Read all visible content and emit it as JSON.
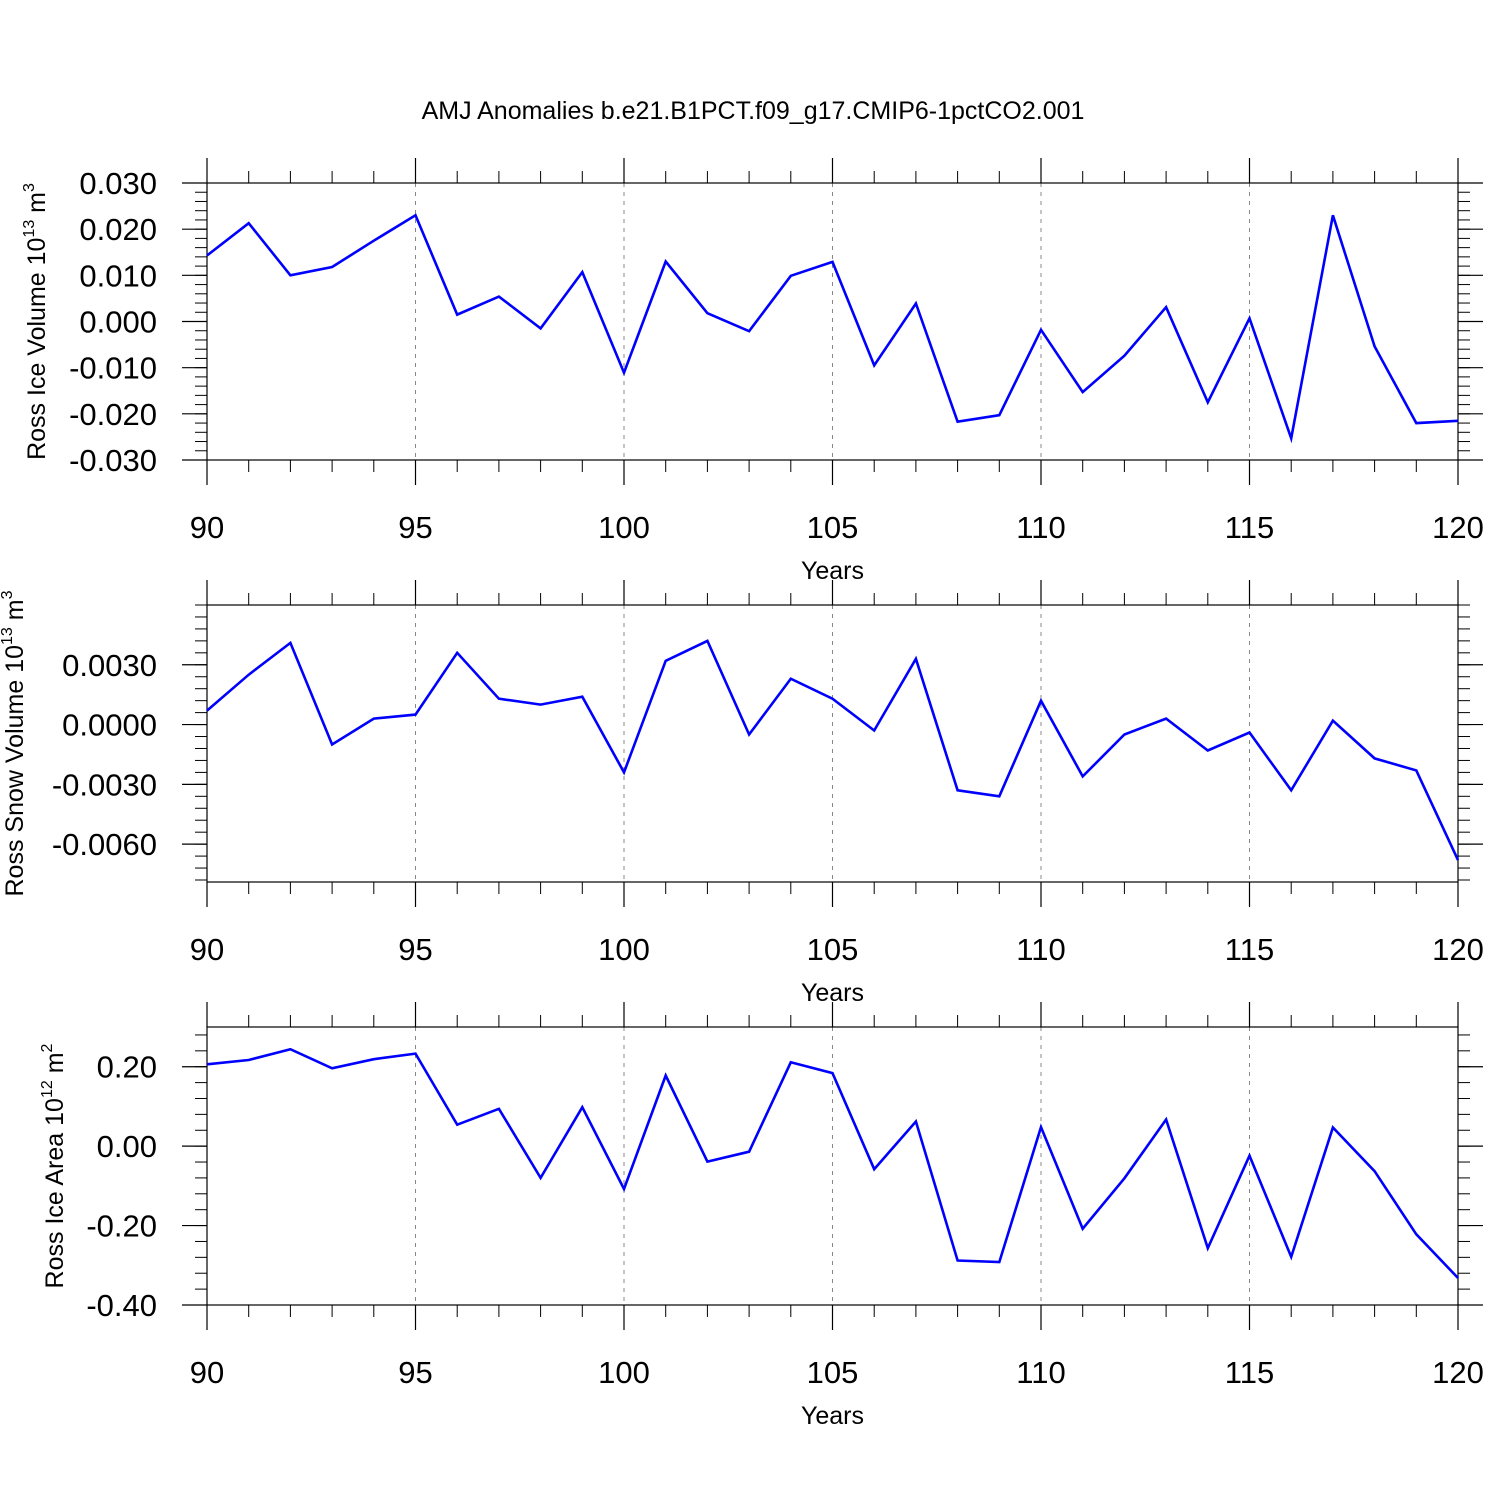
{
  "figure": {
    "title": "AMJ Anomalies b.e21.B1PCT.f09_g17.CMIP6-1pctCO2.001"
  },
  "colors": {
    "line": "#0000ff",
    "axis": "#000000",
    "grid": "#888888"
  },
  "chart_data": [
    {
      "type": "line",
      "xlabel": "Years",
      "ylabel": "Ross Ice Volume 10",
      "ylabel_exp": "13",
      "ylabel_unit": "m",
      "ylabel_unit_exp": "3",
      "xlim": [
        90,
        120
      ],
      "ylim": [
        -0.03,
        0.03
      ],
      "xticks": [
        90,
        95,
        100,
        105,
        110,
        115,
        120
      ],
      "yticks": [
        -0.03,
        -0.02,
        -0.01,
        0.0,
        0.01,
        0.02,
        0.03
      ],
      "ytick_labels": [
        "-0.030",
        "-0.020",
        "-0.010",
        "0.000",
        "0.010",
        "0.020",
        "0.030"
      ],
      "vgrid_dashed": [
        95,
        100,
        105,
        110,
        115
      ],
      "x": [
        90,
        91,
        92,
        93,
        94,
        95,
        96,
        97,
        98,
        99,
        100,
        101,
        102,
        103,
        104,
        105,
        106,
        107,
        108,
        109,
        110,
        111,
        112,
        113,
        114,
        115,
        116,
        117,
        118,
        119,
        120
      ],
      "series": [
        {
          "values": [
            0.0143,
            0.0213,
            0.01,
            0.0118,
            0.0175,
            0.023,
            0.0015,
            0.0054,
            -0.0015,
            0.0107,
            -0.0111,
            0.013,
            0.0018,
            -0.0021,
            0.0099,
            0.0129,
            -0.0095,
            0.0039,
            -0.0217,
            -0.0203,
            -0.0018,
            -0.0153,
            -0.0074,
            0.0031,
            -0.0175,
            0.0007,
            -0.0253,
            0.023,
            -0.0054,
            -0.022,
            -0.0215
          ]
        }
      ]
    },
    {
      "type": "line",
      "xlabel": "Years",
      "ylabel": "Ross Snow Volume 10",
      "ylabel_exp": "13",
      "ylabel_unit": "m",
      "ylabel_unit_exp": "3",
      "xlim": [
        90,
        120
      ],
      "ylim": [
        -0.0079,
        0.006
      ],
      "xticks": [
        90,
        95,
        100,
        105,
        110,
        115,
        120
      ],
      "yticks": [
        -0.006,
        -0.003,
        0.0,
        0.003
      ],
      "ytick_labels": [
        "-0.0060",
        "-0.0030",
        "0.0000",
        "0.0030"
      ],
      "vgrid_dashed": [
        95,
        100,
        105,
        110,
        115
      ],
      "x": [
        90,
        91,
        92,
        93,
        94,
        95,
        96,
        97,
        98,
        99,
        100,
        101,
        102,
        103,
        104,
        105,
        106,
        107,
        108,
        109,
        110,
        111,
        112,
        113,
        114,
        115,
        116,
        117,
        118,
        119,
        120
      ],
      "series": [
        {
          "values": [
            0.0007,
            0.0025,
            0.0041,
            -0.001,
            0.0003,
            0.0005,
            0.0036,
            0.0013,
            0.001,
            0.0014,
            -0.0024,
            0.0032,
            0.0042,
            -0.0005,
            0.0023,
            0.0013,
            -0.0003,
            0.0033,
            -0.0033,
            -0.0036,
            0.0012,
            -0.0026,
            -0.0005,
            0.0003,
            -0.0013,
            -0.0004,
            -0.0033,
            0.0002,
            -0.0017,
            -0.0023,
            -0.0068
          ]
        }
      ]
    },
    {
      "type": "line",
      "xlabel": "Years",
      "ylabel": "Ross Ice Area 10",
      "ylabel_exp": "12",
      "ylabel_unit": "m",
      "ylabel_unit_exp": "2",
      "xlim": [
        90,
        120
      ],
      "ylim": [
        -0.4,
        0.3
      ],
      "xticks": [
        90,
        95,
        100,
        105,
        110,
        115,
        120
      ],
      "yticks": [
        -0.4,
        -0.2,
        0.0,
        0.2
      ],
      "ytick_labels": [
        "-0.40",
        "-0.20",
        "0.00",
        "0.20"
      ],
      "vgrid_dashed": [
        95,
        100,
        105,
        110,
        115
      ],
      "x": [
        90,
        91,
        92,
        93,
        94,
        95,
        96,
        97,
        98,
        99,
        100,
        101,
        102,
        103,
        104,
        105,
        106,
        107,
        108,
        109,
        110,
        111,
        112,
        113,
        114,
        115,
        116,
        117,
        118,
        119,
        120
      ],
      "series": [
        {
          "values": [
            0.206,
            0.217,
            0.244,
            0.196,
            0.219,
            0.233,
            0.054,
            0.094,
            -0.08,
            0.098,
            -0.108,
            0.178,
            -0.039,
            -0.014,
            0.211,
            0.184,
            -0.058,
            0.062,
            -0.288,
            -0.292,
            0.048,
            -0.208,
            -0.081,
            0.067,
            -0.257,
            -0.024,
            -0.279,
            0.047,
            -0.063,
            -0.222,
            -0.332
          ]
        }
      ]
    }
  ]
}
